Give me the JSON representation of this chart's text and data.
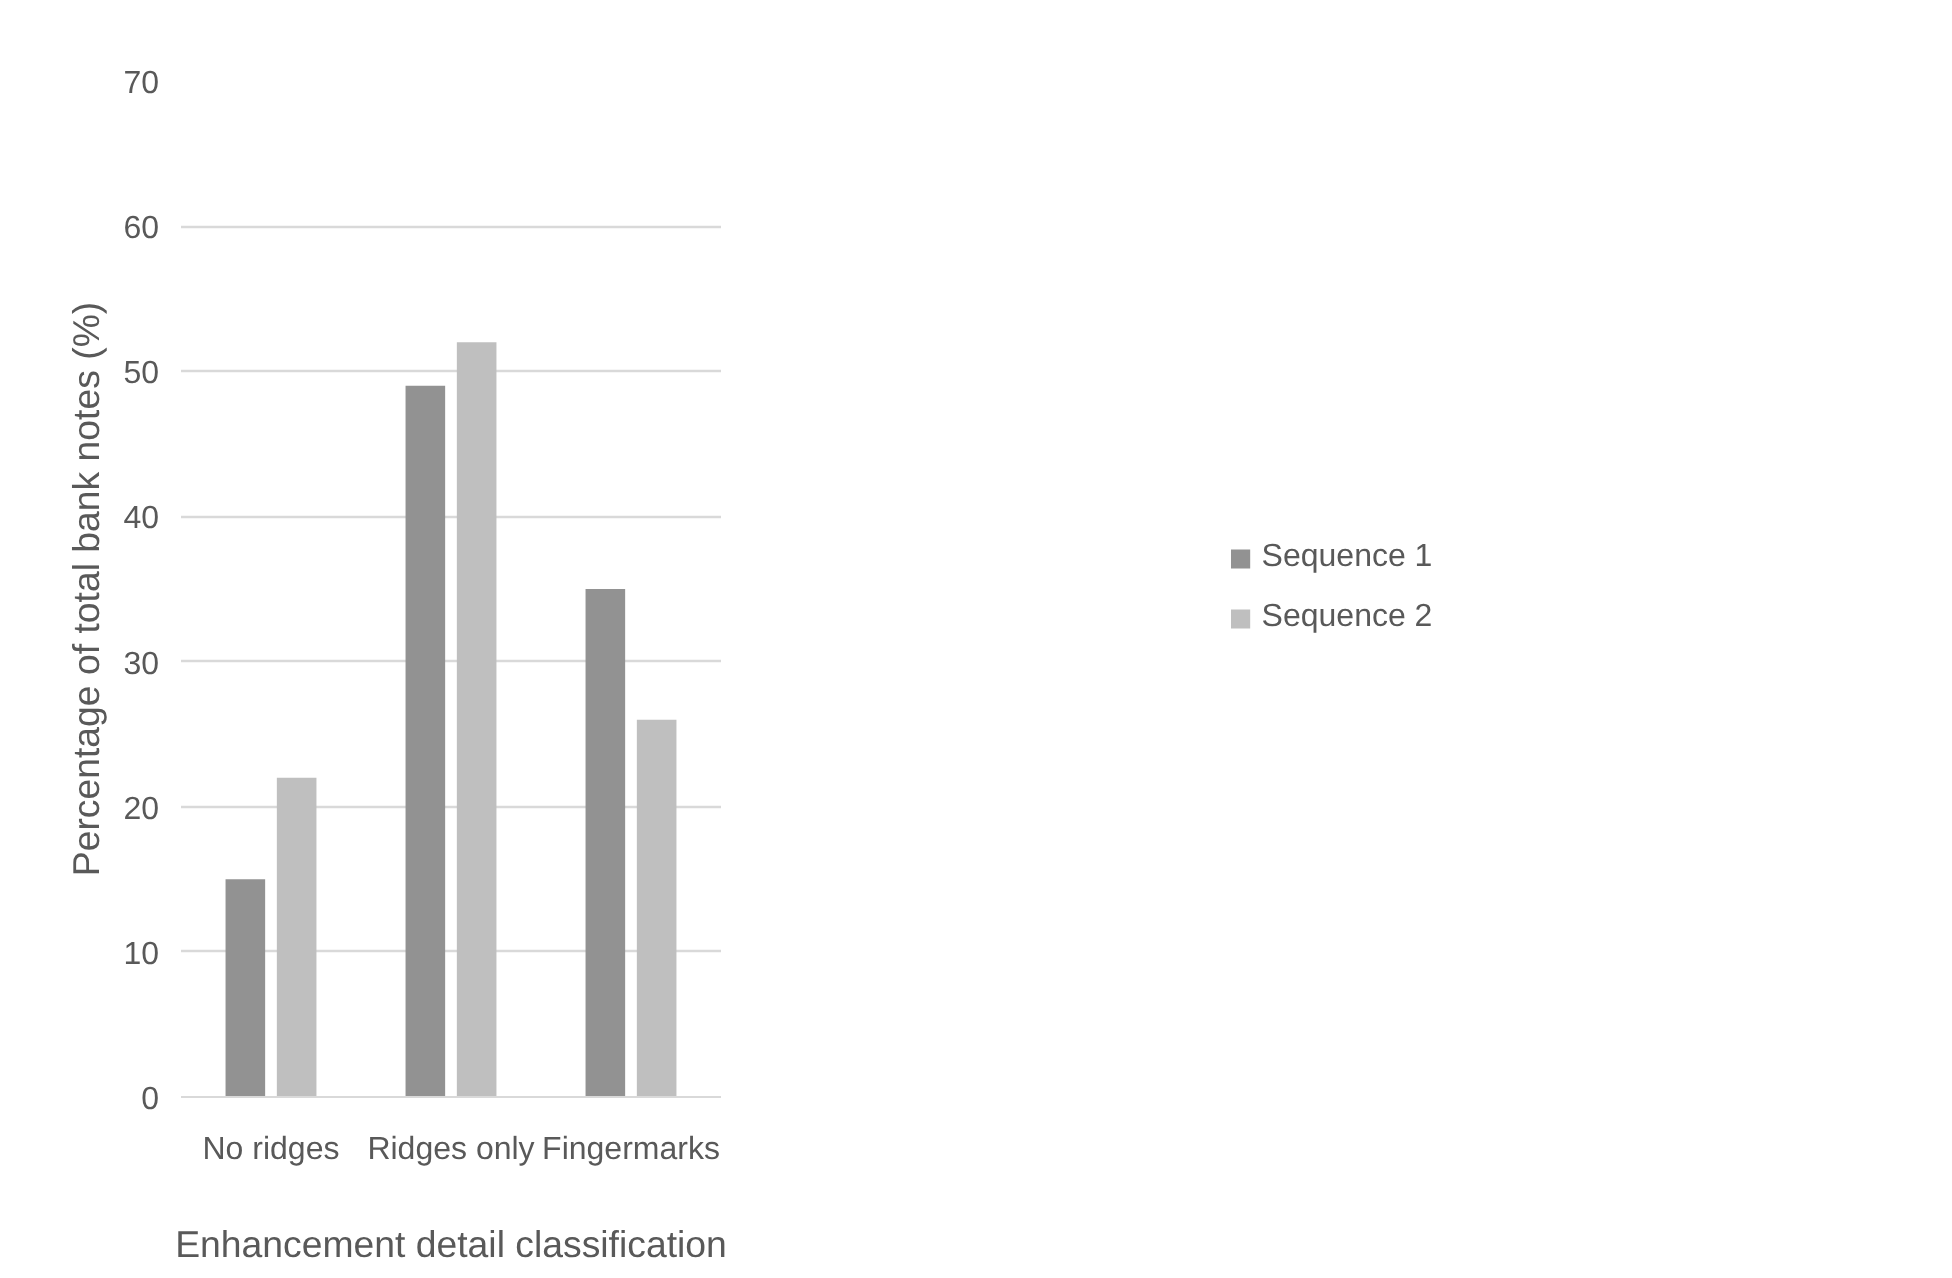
{
  "chart_data": {
    "type": "bar",
    "xlabel": "Enhancement detail classification",
    "ylabel": "Percentage of total bank notes (%)",
    "categories": [
      "No ridges",
      "Ridges only",
      "Fingermarks"
    ],
    "series": [
      {
        "name": "Sequence 1",
        "color": "#929292",
        "values": [
          15,
          49,
          35
        ]
      },
      {
        "name": "Sequence 2",
        "color": "#bfbfbf",
        "values": [
          22,
          52,
          26
        ]
      }
    ],
    "ylim": [
      0,
      70
    ],
    "yticks": [
      0,
      10,
      20,
      30,
      40,
      50,
      60,
      70
    ],
    "grid": "y",
    "legend": "right"
  }
}
